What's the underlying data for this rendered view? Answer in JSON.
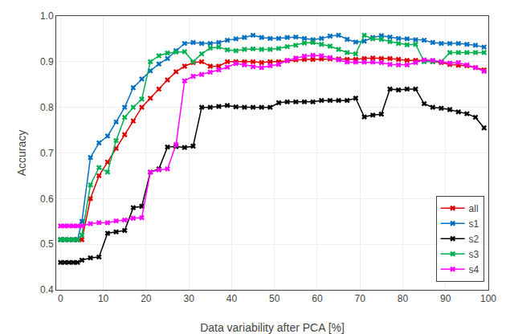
{
  "chart_data": {
    "type": "line",
    "x": [
      0,
      1,
      2,
      3,
      4,
      5,
      7,
      9,
      11,
      13,
      15,
      17,
      19,
      21,
      23,
      25,
      27,
      29,
      31,
      33,
      35,
      37,
      39,
      41,
      43,
      45,
      47,
      49,
      51,
      53,
      55,
      57,
      59,
      61,
      63,
      65,
      67,
      69,
      71,
      73,
      75,
      77,
      79,
      81,
      83,
      85,
      87,
      89,
      91,
      93,
      95,
      97,
      99
    ],
    "series": [
      {
        "name": "all",
        "color": "#dd0000",
        "marker": "x",
        "values": [
          0.51,
          0.51,
          0.51,
          0.51,
          0.51,
          0.51,
          0.6,
          0.65,
          0.68,
          0.71,
          0.74,
          0.77,
          0.8,
          0.82,
          0.84,
          0.86,
          0.878,
          0.89,
          0.898,
          0.9,
          0.89,
          0.89,
          0.9,
          0.9,
          0.9,
          0.9,
          0.898,
          0.9,
          0.9,
          0.902,
          0.904,
          0.905,
          0.905,
          0.906,
          0.906,
          0.906,
          0.905,
          0.905,
          0.907,
          0.908,
          0.907,
          0.907,
          0.905,
          0.903,
          0.903,
          0.903,
          0.9,
          0.898,
          0.894,
          0.892,
          0.891,
          0.887,
          0.882
        ]
      },
      {
        "name": "s1",
        "color": "#0070c0",
        "marker": "x",
        "values": [
          0.51,
          0.51,
          0.51,
          0.51,
          0.51,
          0.55,
          0.69,
          0.722,
          0.737,
          0.768,
          0.8,
          0.843,
          0.862,
          0.88,
          0.895,
          0.907,
          0.924,
          0.94,
          0.942,
          0.94,
          0.94,
          0.942,
          0.947,
          0.95,
          0.953,
          0.958,
          0.953,
          0.951,
          0.951,
          0.953,
          0.954,
          0.951,
          0.948,
          0.951,
          0.956,
          0.958,
          0.949,
          0.943,
          0.945,
          0.953,
          0.957,
          0.954,
          0.951,
          0.95,
          0.948,
          0.947,
          0.942,
          0.94,
          0.94,
          0.94,
          0.938,
          0.936,
          0.932
        ]
      },
      {
        "name": "s2",
        "color": "#000000",
        "marker": "x",
        "values": [
          0.46,
          0.46,
          0.46,
          0.46,
          0.46,
          0.465,
          0.47,
          0.472,
          0.524,
          0.527,
          0.53,
          0.58,
          0.583,
          0.658,
          0.665,
          0.713,
          0.714,
          0.712,
          0.715,
          0.8,
          0.8,
          0.802,
          0.804,
          0.801,
          0.8,
          0.8,
          0.8,
          0.8,
          0.81,
          0.812,
          0.812,
          0.812,
          0.812,
          0.815,
          0.815,
          0.815,
          0.815,
          0.82,
          0.779,
          0.783,
          0.785,
          0.84,
          0.838,
          0.84,
          0.84,
          0.808,
          0.8,
          0.798,
          0.795,
          0.79,
          0.786,
          0.778,
          0.755
        ]
      },
      {
        "name": "s3",
        "color": "#00b050",
        "marker": "x",
        "values": [
          0.51,
          0.51,
          0.51,
          0.51,
          0.51,
          0.52,
          0.63,
          0.668,
          0.658,
          0.727,
          0.778,
          0.8,
          0.818,
          0.9,
          0.913,
          0.919,
          0.921,
          0.922,
          0.9,
          0.917,
          0.93,
          0.932,
          0.926,
          0.924,
          0.927,
          0.928,
          0.927,
          0.927,
          0.929,
          0.933,
          0.936,
          0.941,
          0.942,
          0.938,
          0.934,
          0.927,
          0.92,
          0.917,
          0.958,
          0.95,
          0.949,
          0.944,
          0.94,
          0.937,
          0.938,
          0.9,
          0.9,
          0.9,
          0.92,
          0.92,
          0.92,
          0.92,
          0.92
        ]
      },
      {
        "name": "s4",
        "color": "#ff00ff",
        "marker": "x",
        "values": [
          0.54,
          0.54,
          0.54,
          0.54,
          0.54,
          0.54,
          0.545,
          0.547,
          0.547,
          0.551,
          0.553,
          0.557,
          0.558,
          0.658,
          0.663,
          0.665,
          0.718,
          0.858,
          0.868,
          0.872,
          0.877,
          0.882,
          0.888,
          0.896,
          0.893,
          0.889,
          0.887,
          0.891,
          0.894,
          0.903,
          0.908,
          0.912,
          0.914,
          0.913,
          0.909,
          0.904,
          0.899,
          0.899,
          0.899,
          0.899,
          0.898,
          0.894,
          0.893,
          0.893,
          0.898,
          0.904,
          0.903,
          0.9,
          0.897,
          0.898,
          0.893,
          0.887,
          0.879
        ]
      }
    ],
    "xlabel": "Data variability after PCA [%]",
    "ylabel": "Accuracy",
    "xlim": [
      -1,
      100
    ],
    "ylim": [
      0.4,
      1.0
    ],
    "xticks": [
      0,
      10,
      20,
      30,
      40,
      50,
      60,
      70,
      80,
      90,
      100
    ],
    "yticks": [
      0.4,
      0.5,
      0.6,
      0.7,
      0.8,
      0.9,
      {
        "value": 1.0,
        "label": "1.0"
      }
    ],
    "grid": true,
    "legend": "lower right"
  }
}
